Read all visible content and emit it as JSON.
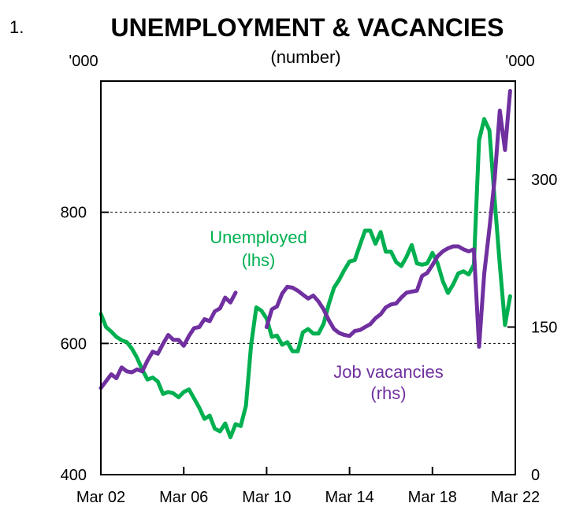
{
  "chart_data": {
    "type": "line",
    "figure_number": "1.",
    "title": "UNEMPLOYMENT & VACANCIES",
    "subtitle": "(number)",
    "left_unit": "'000",
    "right_unit": "'000",
    "x_ticks": [
      "Mar 02",
      "Mar 06",
      "Mar 10",
      "Mar 14",
      "Mar 18",
      "Mar 22"
    ],
    "x_range": [
      2002.0,
      2022.0
    ],
    "y_left": {
      "range": [
        400,
        1000
      ],
      "ticks": [
        400,
        600,
        800
      ]
    },
    "y_right": {
      "range": [
        0,
        400
      ],
      "ticks": [
        0,
        150,
        300
      ]
    },
    "gridlines": [
      600,
      800
    ],
    "series": [
      {
        "name": "Unemployed",
        "label_lines": [
          "Unemployed",
          "(lhs)"
        ],
        "axis": "left",
        "color": "#00B050",
        "points": [
          [
            2002.0,
            645
          ],
          [
            2002.25,
            625
          ],
          [
            2002.5,
            618
          ],
          [
            2002.75,
            610
          ],
          [
            2003.0,
            605
          ],
          [
            2003.25,
            602
          ],
          [
            2003.5,
            592
          ],
          [
            2003.75,
            578
          ],
          [
            2004.0,
            560
          ],
          [
            2004.25,
            545
          ],
          [
            2004.5,
            548
          ],
          [
            2004.75,
            542
          ],
          [
            2005.0,
            523
          ],
          [
            2005.25,
            526
          ],
          [
            2005.5,
            524
          ],
          [
            2005.75,
            518
          ],
          [
            2006.0,
            526
          ],
          [
            2006.25,
            530
          ],
          [
            2006.5,
            516
          ],
          [
            2006.75,
            502
          ],
          [
            2007.0,
            485
          ],
          [
            2007.25,
            490
          ],
          [
            2007.5,
            470
          ],
          [
            2007.75,
            466
          ],
          [
            2008.0,
            478
          ],
          [
            2008.25,
            457
          ],
          [
            2008.5,
            477
          ],
          [
            2008.75,
            474
          ],
          [
            2009.0,
            505
          ],
          [
            2009.25,
            598
          ],
          [
            2009.5,
            655
          ],
          [
            2009.75,
            650
          ],
          [
            2010.0,
            638
          ],
          [
            2010.25,
            610
          ],
          [
            2010.5,
            612
          ],
          [
            2010.75,
            598
          ],
          [
            2011.0,
            602
          ],
          [
            2011.25,
            588
          ],
          [
            2011.5,
            588
          ],
          [
            2011.75,
            617
          ],
          [
            2012.0,
            622
          ],
          [
            2012.25,
            615
          ],
          [
            2012.5,
            615
          ],
          [
            2012.75,
            630
          ],
          [
            2013.0,
            660
          ],
          [
            2013.25,
            685
          ],
          [
            2013.5,
            697
          ],
          [
            2013.75,
            712
          ],
          [
            2014.0,
            725
          ],
          [
            2014.25,
            727
          ],
          [
            2014.5,
            750
          ],
          [
            2014.75,
            772
          ],
          [
            2015.0,
            772
          ],
          [
            2015.25,
            752
          ],
          [
            2015.5,
            770
          ],
          [
            2015.75,
            740
          ],
          [
            2016.0,
            740
          ],
          [
            2016.25,
            724
          ],
          [
            2016.5,
            718
          ],
          [
            2016.75,
            732
          ],
          [
            2017.0,
            750
          ],
          [
            2017.25,
            722
          ],
          [
            2017.5,
            720
          ],
          [
            2017.75,
            722
          ],
          [
            2018.0,
            738
          ],
          [
            2018.25,
            722
          ],
          [
            2018.5,
            695
          ],
          [
            2018.75,
            677
          ],
          [
            2019.0,
            690
          ],
          [
            2019.25,
            707
          ],
          [
            2019.5,
            710
          ],
          [
            2019.75,
            705
          ],
          [
            2020.0,
            720
          ],
          [
            2020.25,
            910
          ],
          [
            2020.5,
            942
          ],
          [
            2020.75,
            925
          ],
          [
            2021.0,
            820
          ],
          [
            2021.25,
            720
          ],
          [
            2021.5,
            628
          ],
          [
            2021.75,
            672
          ]
        ]
      },
      {
        "name": "Job vacancies",
        "label_lines": [
          "Job vacancies",
          "(rhs)"
        ],
        "axis": "right",
        "color": "#7030A0",
        "segments": [
          [
            [
              2002.0,
              88
            ],
            [
              2002.25,
              95
            ],
            [
              2002.5,
              102
            ],
            [
              2002.75,
              98
            ],
            [
              2003.0,
              109
            ],
            [
              2003.25,
              105
            ],
            [
              2003.5,
              104
            ],
            [
              2003.75,
              107
            ],
            [
              2004.0,
              105
            ],
            [
              2004.25,
              116
            ],
            [
              2004.5,
              125
            ],
            [
              2004.75,
              123
            ],
            [
              2005.0,
              133
            ],
            [
              2005.25,
              142
            ],
            [
              2005.5,
              137
            ],
            [
              2005.75,
              137
            ],
            [
              2006.0,
              131
            ],
            [
              2006.25,
              141
            ],
            [
              2006.5,
              149
            ],
            [
              2006.75,
              150
            ],
            [
              2007.0,
              158
            ],
            [
              2007.25,
              156
            ],
            [
              2007.5,
              166
            ],
            [
              2007.75,
              169
            ],
            [
              2008.0,
              180
            ],
            [
              2008.25,
              175
            ],
            [
              2008.5,
              185
            ]
          ],
          [
            [
              2010.0,
              150
            ],
            [
              2010.25,
              168
            ],
            [
              2010.5,
              171
            ],
            [
              2010.75,
              184
            ],
            [
              2011.0,
              191
            ],
            [
              2011.25,
              190
            ],
            [
              2011.5,
              187
            ],
            [
              2011.75,
              183
            ],
            [
              2012.0,
              179
            ],
            [
              2012.25,
              182
            ],
            [
              2012.5,
              176
            ],
            [
              2012.75,
              168
            ],
            [
              2013.0,
              157
            ],
            [
              2013.25,
              148
            ],
            [
              2013.5,
              144
            ],
            [
              2013.75,
              142
            ],
            [
              2014.0,
              141
            ],
            [
              2014.25,
              146
            ],
            [
              2014.5,
              147
            ],
            [
              2014.75,
              150
            ],
            [
              2015.0,
              153
            ],
            [
              2015.25,
              159
            ],
            [
              2015.5,
              163
            ],
            [
              2015.75,
              170
            ],
            [
              2016.0,
              173
            ],
            [
              2016.25,
              174
            ],
            [
              2016.5,
              180
            ],
            [
              2016.75,
              185
            ],
            [
              2017.0,
              186
            ],
            [
              2017.25,
              187
            ],
            [
              2017.5,
              202
            ],
            [
              2017.75,
              205
            ],
            [
              2018.0,
              213
            ],
            [
              2018.25,
              222
            ],
            [
              2018.5,
              227
            ],
            [
              2018.75,
              230
            ],
            [
              2019.0,
              232
            ],
            [
              2019.25,
              232
            ],
            [
              2019.5,
              229
            ],
            [
              2019.75,
              227
            ],
            [
              2020.0,
              229
            ],
            [
              2020.25,
              130
            ],
            [
              2020.5,
              204
            ],
            [
              2020.75,
              250
            ],
            [
              2021.0,
              300
            ],
            [
              2021.25,
              370
            ],
            [
              2021.5,
              330
            ],
            [
              2021.75,
              390
            ]
          ]
        ]
      }
    ]
  }
}
